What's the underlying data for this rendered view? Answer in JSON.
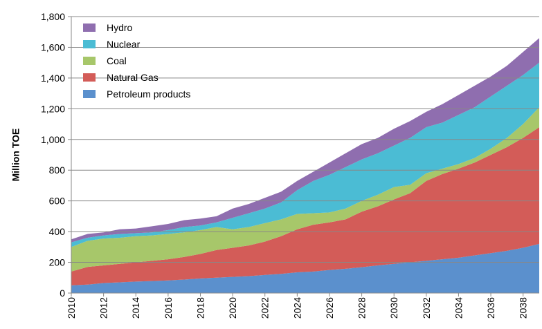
{
  "chart_data": {
    "type": "stacked_area",
    "ylabel": "Million TOE",
    "x": [
      2010,
      2011,
      2012,
      2013,
      2014,
      2015,
      2016,
      2017,
      2018,
      2019,
      2020,
      2021,
      2022,
      2023,
      2024,
      2025,
      2026,
      2027,
      2028,
      2029,
      2030,
      2031,
      2032,
      2033,
      2034,
      2035,
      2036,
      2037,
      2038,
      2039
    ],
    "xlim": [
      2010,
      2039
    ],
    "xticks": [
      2010,
      2012,
      2014,
      2016,
      2018,
      2020,
      2022,
      2024,
      2026,
      2028,
      2030,
      2032,
      2034,
      2036,
      2038
    ],
    "ylim": [
      0,
      1800
    ],
    "yticks": [
      0,
      200,
      400,
      600,
      800,
      {
        "value": 1000,
        "label": "1,000"
      },
      {
        "value": 1200,
        "label": "1,200"
      },
      {
        "value": 1400,
        "label": "1,400"
      },
      {
        "value": 1600,
        "label": "1,600"
      },
      {
        "value": 1800,
        "label": "1,800"
      }
    ],
    "grid": true,
    "legend": "upper left",
    "series": [
      {
        "name": "Petroleum products",
        "color": "#5b90cd",
        "values": [
          50,
          55,
          65,
          70,
          75,
          78,
          82,
          88,
          95,
          100,
          105,
          110,
          118,
          125,
          135,
          140,
          150,
          158,
          168,
          180,
          190,
          200,
          210,
          220,
          230,
          245,
          260,
          275,
          295,
          320
        ]
      },
      {
        "name": "Natural Gas",
        "color": "#d35c58",
        "values": [
          90,
          115,
          115,
          120,
          125,
          132,
          138,
          147,
          160,
          180,
          190,
          200,
          217,
          245,
          280,
          305,
          310,
          322,
          362,
          385,
          420,
          450,
          520,
          555,
          580,
          605,
          640,
          675,
          715,
          760
        ]
      },
      {
        "name": "Coal",
        "color": "#a7c76a",
        "values": [
          160,
          170,
          175,
          170,
          170,
          165,
          165,
          160,
          155,
          150,
          120,
          120,
          120,
          110,
          100,
          75,
          65,
          70,
          70,
          75,
          80,
          55,
          50,
          35,
          30,
          30,
          40,
          60,
          90,
          130
        ]
      },
      {
        "name": "Nuclear",
        "color": "#4bbcd4",
        "values": [
          30,
          20,
          20,
          25,
          20,
          20,
          25,
          35,
          30,
          30,
          75,
          90,
          95,
          110,
          155,
          210,
          245,
          270,
          270,
          270,
          270,
          305,
          300,
          300,
          320,
          330,
          340,
          340,
          320,
          290
        ]
      },
      {
        "name": "Hydro",
        "color": "#8f6eaf",
        "values": [
          20,
          25,
          20,
          30,
          30,
          40,
          40,
          45,
          45,
          40,
          60,
          60,
          70,
          70,
          60,
          60,
          80,
          90,
          100,
          100,
          110,
          110,
          100,
          120,
          130,
          140,
          130,
          130,
          150,
          160
        ]
      }
    ]
  }
}
